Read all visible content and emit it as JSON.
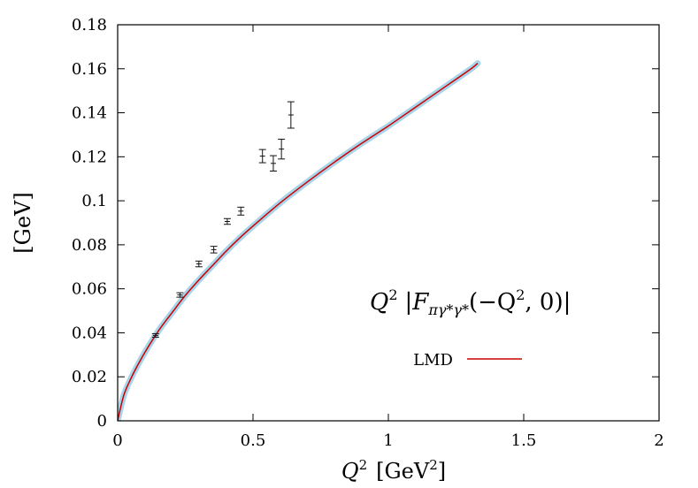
{
  "chart_data": {
    "type": "line",
    "title": "",
    "xlabel": {
      "base": "Q",
      "sup": "2",
      "unit_prefix": "[GeV",
      "unit_sup": "2",
      "unit_suffix": "]"
    },
    "ylabel": "[GeV]",
    "xlim": [
      0,
      2
    ],
    "ylim": [
      0,
      0.18
    ],
    "x_ticks": [
      0,
      0.5,
      1,
      1.5,
      2
    ],
    "x_tick_labels": [
      "0",
      "0.5",
      "1",
      "1.5",
      "2"
    ],
    "y_ticks": [
      0,
      0.02,
      0.04,
      0.06,
      0.08,
      0.1,
      0.12,
      0.14,
      0.16,
      0.18
    ],
    "y_tick_labels": [
      "0",
      "0.02",
      "0.04",
      "0.06",
      "0.08",
      "0.1",
      "0.12",
      "0.14",
      "0.16",
      "0.18"
    ],
    "grid": false,
    "annotation": {
      "prefix": "Q",
      "prefix_sup": "2",
      "bar_open": "|",
      "func": "F",
      "func_sub": "πγ*γ*",
      "args": "(−Q",
      "args_sup": "2",
      "args_tail": ", 0)",
      "bar_close": "|"
    },
    "legend": {
      "position": "right",
      "entries": [
        {
          "label": "LMD",
          "color": "#cc0000"
        }
      ]
    },
    "series": [
      {
        "name": "LMD",
        "color": "#cc0000",
        "band_color": "#a8d4ea",
        "x": [
          0,
          0.01,
          0.025,
          0.05,
          0.075,
          0.1,
          0.13,
          0.16,
          0.2,
          0.25,
          0.3,
          0.35,
          0.4,
          0.45,
          0.5,
          0.6,
          0.7,
          0.8,
          0.9,
          1.0,
          1.1,
          1.2,
          1.3,
          1.33
        ],
        "y": [
          0,
          0.0055,
          0.0125,
          0.0195,
          0.0255,
          0.031,
          0.037,
          0.0425,
          0.049,
          0.057,
          0.064,
          0.0705,
          0.077,
          0.083,
          0.0885,
          0.099,
          0.1085,
          0.1175,
          0.126,
          0.134,
          0.1425,
          0.151,
          0.1595,
          0.1625
        ]
      }
    ],
    "data_points": [
      {
        "x": 0.14,
        "y": 0.0388,
        "err": 0.0008
      },
      {
        "x": 0.23,
        "y": 0.0572,
        "err": 0.001
      },
      {
        "x": 0.3,
        "y": 0.0713,
        "err": 0.0013
      },
      {
        "x": 0.355,
        "y": 0.0778,
        "err": 0.0015
      },
      {
        "x": 0.405,
        "y": 0.0906,
        "err": 0.0013
      },
      {
        "x": 0.455,
        "y": 0.0953,
        "err": 0.0018
      },
      {
        "x": 0.535,
        "y": 0.1203,
        "err": 0.003
      },
      {
        "x": 0.575,
        "y": 0.117,
        "err": 0.0035
      },
      {
        "x": 0.605,
        "y": 0.1235,
        "err": 0.0045
      },
      {
        "x": 0.64,
        "y": 0.139,
        "err": 0.006
      }
    ]
  }
}
